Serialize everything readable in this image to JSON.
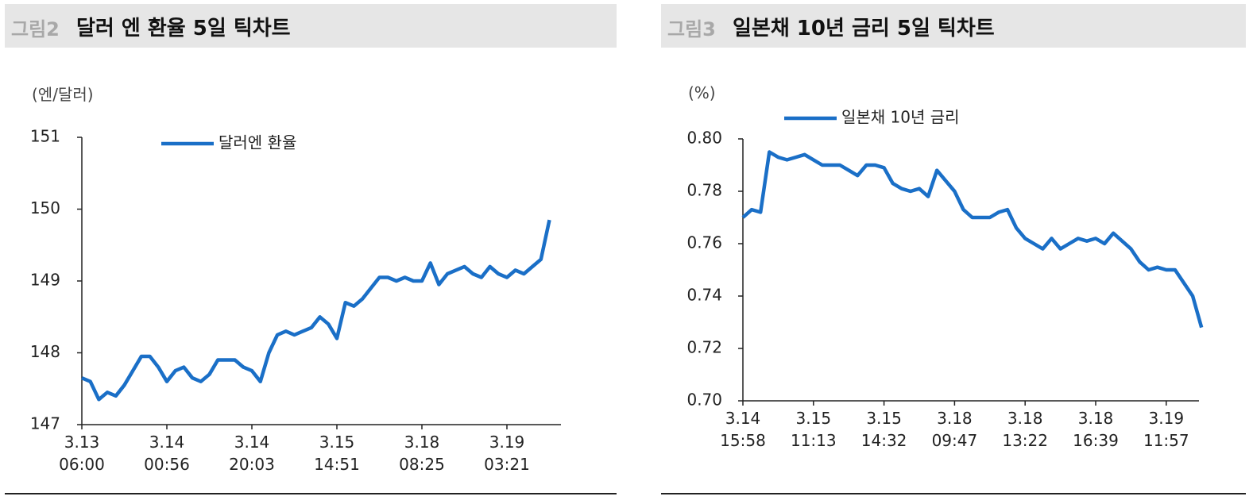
{
  "chart_data": [
    {
      "type": "line",
      "figure_label": "그림2",
      "title": "달러 엔 환율 5일 틱차트",
      "y_unit": "(엔/달러)",
      "categories": [
        "3.13\n06:00",
        null,
        null,
        null,
        null,
        null,
        null,
        null,
        null,
        null,
        "3.14\n00:56",
        null,
        null,
        null,
        null,
        null,
        null,
        null,
        null,
        null,
        "3.14\n20:03",
        null,
        null,
        null,
        null,
        null,
        null,
        null,
        null,
        null,
        "3.15\n14:51",
        null,
        null,
        null,
        null,
        null,
        null,
        null,
        null,
        null,
        "3.18\n08:25",
        null,
        null,
        null,
        null,
        null,
        null,
        null,
        null,
        null,
        "3.19\n03:21",
        null,
        null,
        null,
        null,
        null
      ],
      "series": [
        {
          "name": "달러엔 환율",
          "color": "#1a6fc7",
          "values": [
            147.65,
            147.6,
            147.35,
            147.45,
            147.4,
            147.55,
            147.75,
            147.95,
            147.95,
            147.8,
            147.6,
            147.75,
            147.8,
            147.65,
            147.6,
            147.7,
            147.9,
            147.9,
            147.9,
            147.8,
            147.75,
            147.6,
            148.0,
            148.25,
            148.3,
            148.25,
            148.3,
            148.35,
            148.5,
            148.4,
            148.2,
            148.7,
            148.65,
            148.75,
            148.9,
            149.05,
            149.05,
            149.0,
            149.05,
            149.0,
            149.0,
            149.25,
            148.95,
            149.1,
            149.15,
            149.2,
            149.1,
            149.05,
            149.2,
            149.1,
            149.05,
            149.15,
            149.1,
            149.2,
            149.3,
            149.85
          ]
        }
      ],
      "ylim": [
        147,
        151
      ],
      "yticks": [
        147,
        148,
        149,
        150,
        151
      ]
    },
    {
      "type": "line",
      "figure_label": "그림3",
      "title": "일본채 10년 금리 5일 틱차트",
      "y_unit": "(%)",
      "categories": [
        "3.14\n15:58",
        null,
        null,
        null,
        null,
        null,
        null,
        null,
        "3.15\n11:13",
        null,
        null,
        null,
        null,
        null,
        null,
        null,
        "3.15\n14:32",
        null,
        null,
        null,
        null,
        null,
        null,
        null,
        "3.18\n09:47",
        null,
        null,
        null,
        null,
        null,
        null,
        null,
        "3.18\n13:22",
        null,
        null,
        null,
        null,
        null,
        null,
        null,
        "3.18\n16:39",
        null,
        null,
        null,
        null,
        null,
        null,
        null,
        "3.19\n11:57",
        null,
        null,
        null,
        null
      ],
      "series": [
        {
          "name": "일본채 10년 금리",
          "color": "#1a6fc7",
          "values": [
            0.77,
            0.773,
            0.772,
            0.795,
            0.793,
            0.792,
            0.793,
            0.794,
            0.792,
            0.79,
            0.79,
            0.79,
            0.788,
            0.786,
            0.79,
            0.79,
            0.789,
            0.783,
            0.781,
            0.78,
            0.781,
            0.778,
            0.788,
            0.784,
            0.78,
            0.773,
            0.77,
            0.77,
            0.77,
            0.772,
            0.773,
            0.766,
            0.762,
            0.76,
            0.758,
            0.762,
            0.758,
            0.76,
            0.762,
            0.761,
            0.762,
            0.76,
            0.764,
            0.761,
            0.758,
            0.753,
            0.75,
            0.751,
            0.75,
            0.75,
            0.745,
            0.74,
            0.728
          ]
        }
      ],
      "ylim": [
        0.7,
        0.8
      ],
      "yticks": [
        {
          "value": 0.7,
          "label": "0.70"
        },
        0.72,
        0.74,
        0.76,
        0.78,
        {
          "value": 0.8,
          "label": "0.80"
        }
      ]
    }
  ]
}
